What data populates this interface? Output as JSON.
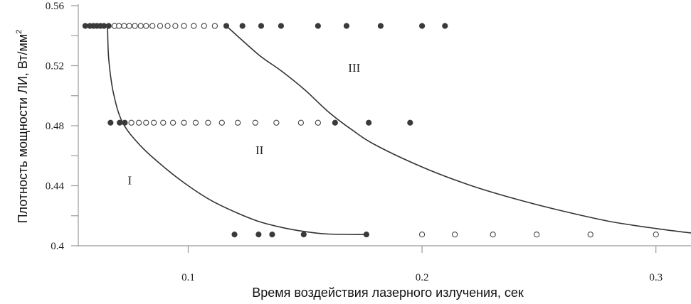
{
  "chart_data": {
    "type": "scatter",
    "xlabel": "Время воздействия  лазерного излучения, сек",
    "ylabel": "Плотность  мощности ЛИ, Вт/мм",
    "ylabel_sup": "2",
    "xlim": [
      0.053,
      0.315
    ],
    "ylim": [
      0.4,
      0.56
    ],
    "x_ticks": [
      0.1,
      0.2,
      0.3
    ],
    "y_ticks": [
      0.4,
      0.44,
      0.48,
      0.52,
      0.56
    ],
    "x_tick_labels": [
      "0.1",
      "0.2",
      "0.3"
    ],
    "y_tick_labels": [
      "0.4",
      "0.44",
      "0.48",
      "0.52",
      "0.56"
    ],
    "region_labels": [
      {
        "text": "I",
        "x": 0.075,
        "y": 0.441
      },
      {
        "text": "II",
        "x": 0.1305,
        "y": 0.461
      },
      {
        "text": "III",
        "x": 0.171,
        "y": 0.516
      }
    ],
    "series": [
      {
        "marker": "filled",
        "points": [
          [
            0.056,
            0.5465
          ],
          [
            0.058,
            0.5465
          ],
          [
            0.0595,
            0.5465
          ],
          [
            0.061,
            0.5465
          ],
          [
            0.0625,
            0.5465
          ],
          [
            0.064,
            0.5465
          ],
          [
            0.066,
            0.5465
          ],
          [
            0.1163,
            0.5465
          ],
          [
            0.1232,
            0.5465
          ],
          [
            0.1312,
            0.5465
          ],
          [
            0.1397,
            0.5465
          ],
          [
            0.1555,
            0.5465
          ],
          [
            0.1677,
            0.5465
          ],
          [
            0.1823,
            0.5465
          ],
          [
            0.2,
            0.5465
          ],
          [
            0.2098,
            0.5465
          ],
          [
            0.0668,
            0.482
          ],
          [
            0.0707,
            0.482
          ],
          [
            0.0729,
            0.482
          ],
          [
            0.1628,
            0.482
          ],
          [
            0.1772,
            0.482
          ],
          [
            0.1949,
            0.482
          ],
          [
            0.1198,
            0.4075
          ],
          [
            0.1301,
            0.4075
          ],
          [
            0.1359,
            0.4075
          ],
          [
            0.1494,
            0.4075
          ],
          [
            0.1762,
            0.4075
          ]
        ]
      },
      {
        "marker": "open",
        "points": [
          [
            0.0685,
            0.5465
          ],
          [
            0.0704,
            0.5465
          ],
          [
            0.0726,
            0.5465
          ],
          [
            0.0748,
            0.5465
          ],
          [
            0.0772,
            0.5465
          ],
          [
            0.0797,
            0.5465
          ],
          [
            0.082,
            0.5465
          ],
          [
            0.0847,
            0.5465
          ],
          [
            0.088,
            0.5465
          ],
          [
            0.0912,
            0.5465
          ],
          [
            0.0945,
            0.5465
          ],
          [
            0.0982,
            0.5465
          ],
          [
            0.1024,
            0.5465
          ],
          [
            0.1068,
            0.5465
          ],
          [
            0.1114,
            0.5465
          ],
          [
            0.0757,
            0.482
          ],
          [
            0.0789,
            0.482
          ],
          [
            0.082,
            0.482
          ],
          [
            0.0853,
            0.482
          ],
          [
            0.0893,
            0.482
          ],
          [
            0.0935,
            0.482
          ],
          [
            0.0982,
            0.482
          ],
          [
            0.1032,
            0.482
          ],
          [
            0.1085,
            0.482
          ],
          [
            0.1144,
            0.482
          ],
          [
            0.1212,
            0.482
          ],
          [
            0.1287,
            0.482
          ],
          [
            0.1377,
            0.482
          ],
          [
            0.1482,
            0.482
          ],
          [
            0.1555,
            0.482
          ],
          [
            0.2,
            0.4075
          ],
          [
            0.214,
            0.4075
          ],
          [
            0.2303,
            0.4075
          ],
          [
            0.249,
            0.4075
          ],
          [
            0.272,
            0.4075
          ],
          [
            0.3,
            0.4075
          ]
        ]
      }
    ],
    "curves": [
      {
        "name": "I",
        "points": [
          [
            0.0655,
            0.5465
          ],
          [
            0.066,
            0.525
          ],
          [
            0.068,
            0.502
          ],
          [
            0.072,
            0.482
          ],
          [
            0.08,
            0.466
          ],
          [
            0.09,
            0.452
          ],
          [
            0.1,
            0.44
          ],
          [
            0.11,
            0.43
          ],
          [
            0.12,
            0.4225
          ],
          [
            0.13,
            0.4163
          ],
          [
            0.14,
            0.4122
          ],
          [
            0.15,
            0.4094
          ],
          [
            0.16,
            0.4078
          ],
          [
            0.1762,
            0.4075
          ]
        ]
      },
      {
        "name": "II",
        "points": [
          [
            0.1163,
            0.5465
          ],
          [
            0.13,
            0.5275
          ],
          [
            0.14,
            0.5163
          ],
          [
            0.15,
            0.5037
          ],
          [
            0.16,
            0.4892
          ],
          [
            0.17,
            0.4773
          ],
          [
            0.18,
            0.4672
          ],
          [
            0.2,
            0.4525
          ],
          [
            0.22,
            0.4406
          ],
          [
            0.24,
            0.4312
          ],
          [
            0.26,
            0.4232
          ],
          [
            0.28,
            0.4163
          ],
          [
            0.3,
            0.4115
          ],
          [
            0.315,
            0.4085
          ]
        ]
      }
    ]
  }
}
